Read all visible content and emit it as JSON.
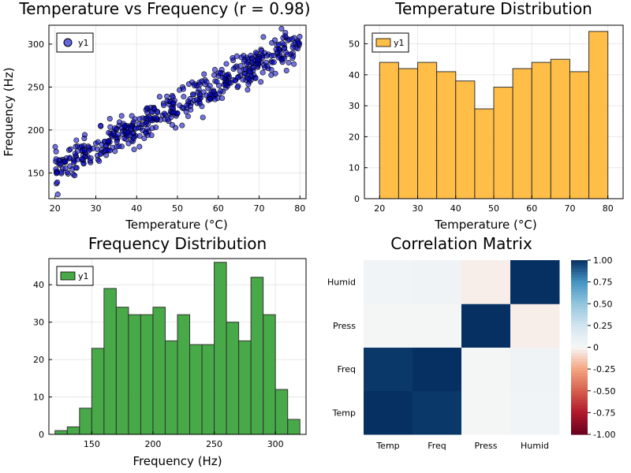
{
  "chart_data": [
    {
      "id": "scatter",
      "type": "scatter",
      "title": "Temperature vs Frequency (r = 0.98)",
      "xlabel": "Temperature (°C)",
      "ylabel": "Frequency (Hz)",
      "xlim": [
        18.5,
        81.5
      ],
      "ylim": [
        120,
        322
      ],
      "xticks": [
        20,
        30,
        40,
        50,
        60,
        70,
        80
      ],
      "yticks": [
        150,
        200,
        250,
        300
      ],
      "legend": {
        "position": "top-left",
        "entries": [
          "y1"
        ]
      },
      "color": "#0000cc",
      "grid": true,
      "trend": {
        "slope": 2.5,
        "intercept": 103,
        "spread": 10
      },
      "n_points": 500
    },
    {
      "id": "temp_hist",
      "type": "bar",
      "title": "Temperature Distribution",
      "xlabel": "Temperature (°C)",
      "ylabel": "",
      "bin_edges": [
        20,
        25,
        30,
        35,
        40,
        45,
        50,
        55,
        60,
        65,
        70,
        75,
        80
      ],
      "values": [
        44,
        42,
        44,
        41,
        38,
        29,
        36,
        42,
        44,
        45,
        41,
        54
      ],
      "xlim": [
        16,
        84
      ],
      "ylim": [
        0,
        56
      ],
      "xticks": [
        20,
        30,
        40,
        50,
        60,
        70,
        80
      ],
      "yticks": [
        0,
        10,
        20,
        30,
        40,
        50
      ],
      "legend": {
        "position": "top-left",
        "entries": [
          "y1"
        ]
      },
      "color": "#ffb733",
      "grid": true
    },
    {
      "id": "freq_hist",
      "type": "bar",
      "title": "Frequency Distribution",
      "xlabel": "Frequency (Hz)",
      "ylabel": "",
      "bin_edges": [
        120,
        130,
        140,
        150,
        160,
        170,
        180,
        190,
        200,
        210,
        220,
        230,
        240,
        250,
        260,
        270,
        280,
        290,
        300,
        310,
        320
      ],
      "values": [
        1,
        2,
        7,
        23,
        39,
        34,
        32,
        32,
        34,
        25,
        32,
        24,
        24,
        46,
        30,
        25,
        42,
        32,
        12,
        4
      ],
      "xlim": [
        115,
        325
      ],
      "ylim": [
        0,
        47
      ],
      "xticks": [
        150,
        200,
        250,
        300
      ],
      "yticks": [
        0,
        10,
        20,
        30,
        40
      ],
      "legend": {
        "position": "top-left",
        "entries": [
          "y1"
        ]
      },
      "color": "#33a033",
      "grid": true
    },
    {
      "id": "corr",
      "type": "heatmap",
      "title": "Correlation Matrix",
      "labels": [
        "Temp",
        "Freq",
        "Press",
        "Humid"
      ],
      "matrix": [
        [
          1.0,
          0.98,
          0.02,
          0.04
        ],
        [
          0.98,
          1.0,
          0.02,
          0.05
        ],
        [
          0.02,
          0.02,
          1.0,
          -0.03
        ],
        [
          0.04,
          0.05,
          -0.03,
          1.0
        ]
      ],
      "clim": [
        -1,
        1
      ],
      "colorbar_ticks": [
        "1.00",
        "0.75",
        "0.50",
        "0.25",
        "0",
        "-0.25",
        "-0.50",
        "-0.75",
        "-1.00"
      ],
      "colormap": "RdBu"
    }
  ]
}
